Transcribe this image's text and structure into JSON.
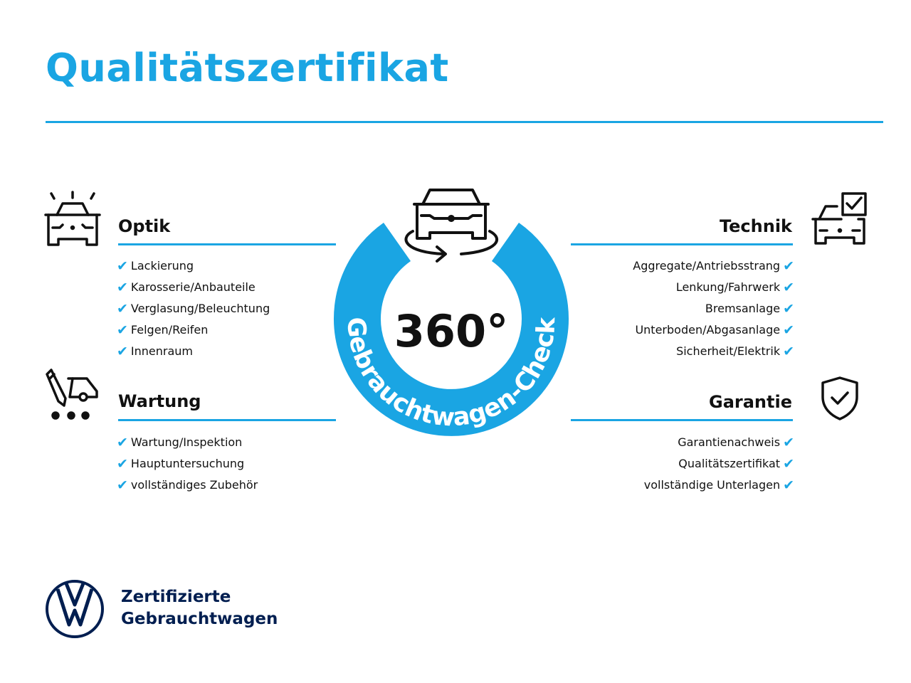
{
  "title": "Qualitätszertifikat",
  "colors": {
    "accent": "#1aa5e3",
    "brand_navy": "#001e50",
    "text": "#111111"
  },
  "center_badge": {
    "value": "360°",
    "ring_text": "Gebrauchtwagen-Check",
    "icon": "car-rotate-icon"
  },
  "sections": {
    "optik": {
      "heading": "Optik",
      "icon": "car-lights-icon",
      "items": [
        "Lackierung",
        "Karosserie/Anbauteile",
        "Verglasung/Beleuchtung",
        "Felgen/Reifen",
        "Innenraum"
      ]
    },
    "wartung": {
      "heading": "Wartung",
      "icon": "service-car-icon",
      "items": [
        "Wartung/Inspektion",
        "Hauptuntersuchung",
        "vollständiges Zubehör"
      ]
    },
    "technik": {
      "heading": "Technik",
      "icon": "car-checklist-icon",
      "items": [
        "Aggregate/Antriebsstrang",
        "Lenkung/Fahrwerk",
        "Bremsanlage",
        "Unterboden/Abgasanlage",
        "Sicherheit/Elektrik"
      ]
    },
    "garantie": {
      "heading": "Garantie",
      "icon": "shield-check-icon",
      "items": [
        "Garantienachweis",
        "Qualitätszertifikat",
        "vollständige Unterlagen"
      ]
    }
  },
  "check_glyph": "✔",
  "footer": {
    "line1": "Zertifizierte",
    "line2": "Gebrauchtwagen",
    "logo": "vw-logo"
  }
}
